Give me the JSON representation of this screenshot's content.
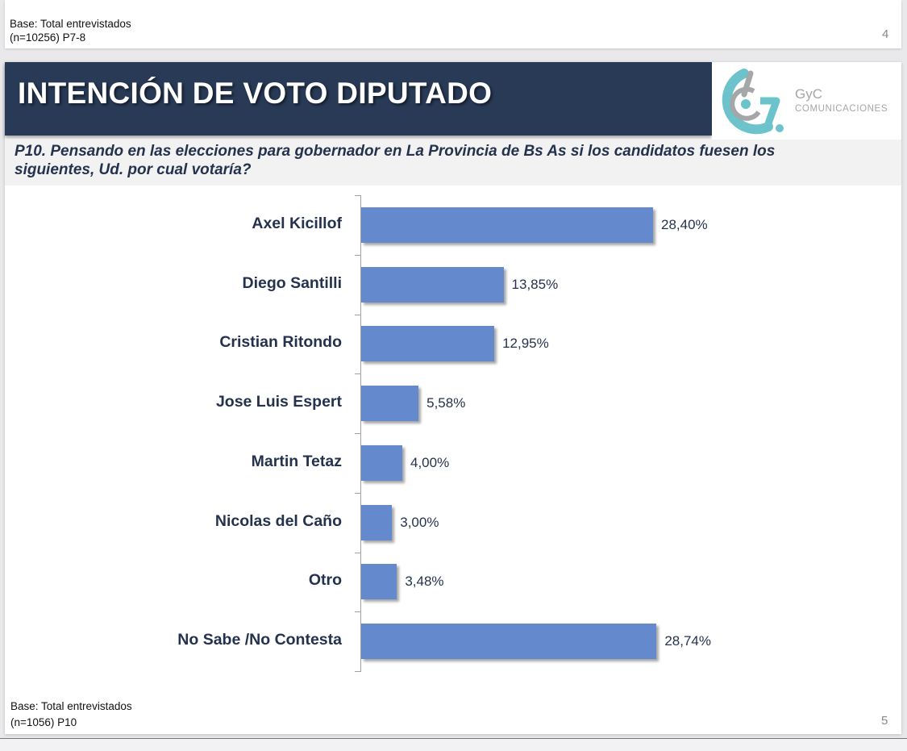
{
  "previous_slide": {
    "base_line1": "Base: Total entrevistados",
    "base_line2": "(n=10256) P7-8",
    "page_number": "4"
  },
  "slide": {
    "title": "INTENCIÓN DE VOTO DIPUTADO",
    "logo": {
      "name_line1": "GyC",
      "name_line2": "COMUNICACIONES",
      "colors": {
        "teal": "#6cc3cb",
        "gray": "#a4a6a8"
      }
    },
    "question": "P10. Pensando en las elecciones para gobernador en La Provincia  de Bs As si los candidatos  fuesen los siguientes, Ud. por cual votaría?",
    "base_line1": "Base: Total entrevistados",
    "base_line2": "(n=1056) P10",
    "page_number": "5",
    "colors": {
      "header": "#283a56",
      "bar": "#6489cd",
      "text": "#24324d"
    }
  },
  "chart_data": {
    "type": "bar",
    "orientation": "horizontal",
    "title": "",
    "xlabel": "",
    "ylabel": "",
    "categories": [
      "Axel Kicillof",
      "Diego Santilli",
      "Cristian Ritondo",
      "Jose Luis Espert",
      "Martin Tetaz",
      "Nicolas del Caño",
      "Otro",
      "No Sabe /No Contesta"
    ],
    "values": [
      28.4,
      13.85,
      12.95,
      5.58,
      4.0,
      3.0,
      3.48,
      28.74
    ],
    "value_labels": [
      "28,40%",
      "13,85%",
      "12,95%",
      "5,58%",
      "4,00%",
      "3,00%",
      "3,48%",
      "28,74%"
    ],
    "unit": "%",
    "xlim": [
      0,
      30
    ],
    "grid": false,
    "legend": "none"
  }
}
